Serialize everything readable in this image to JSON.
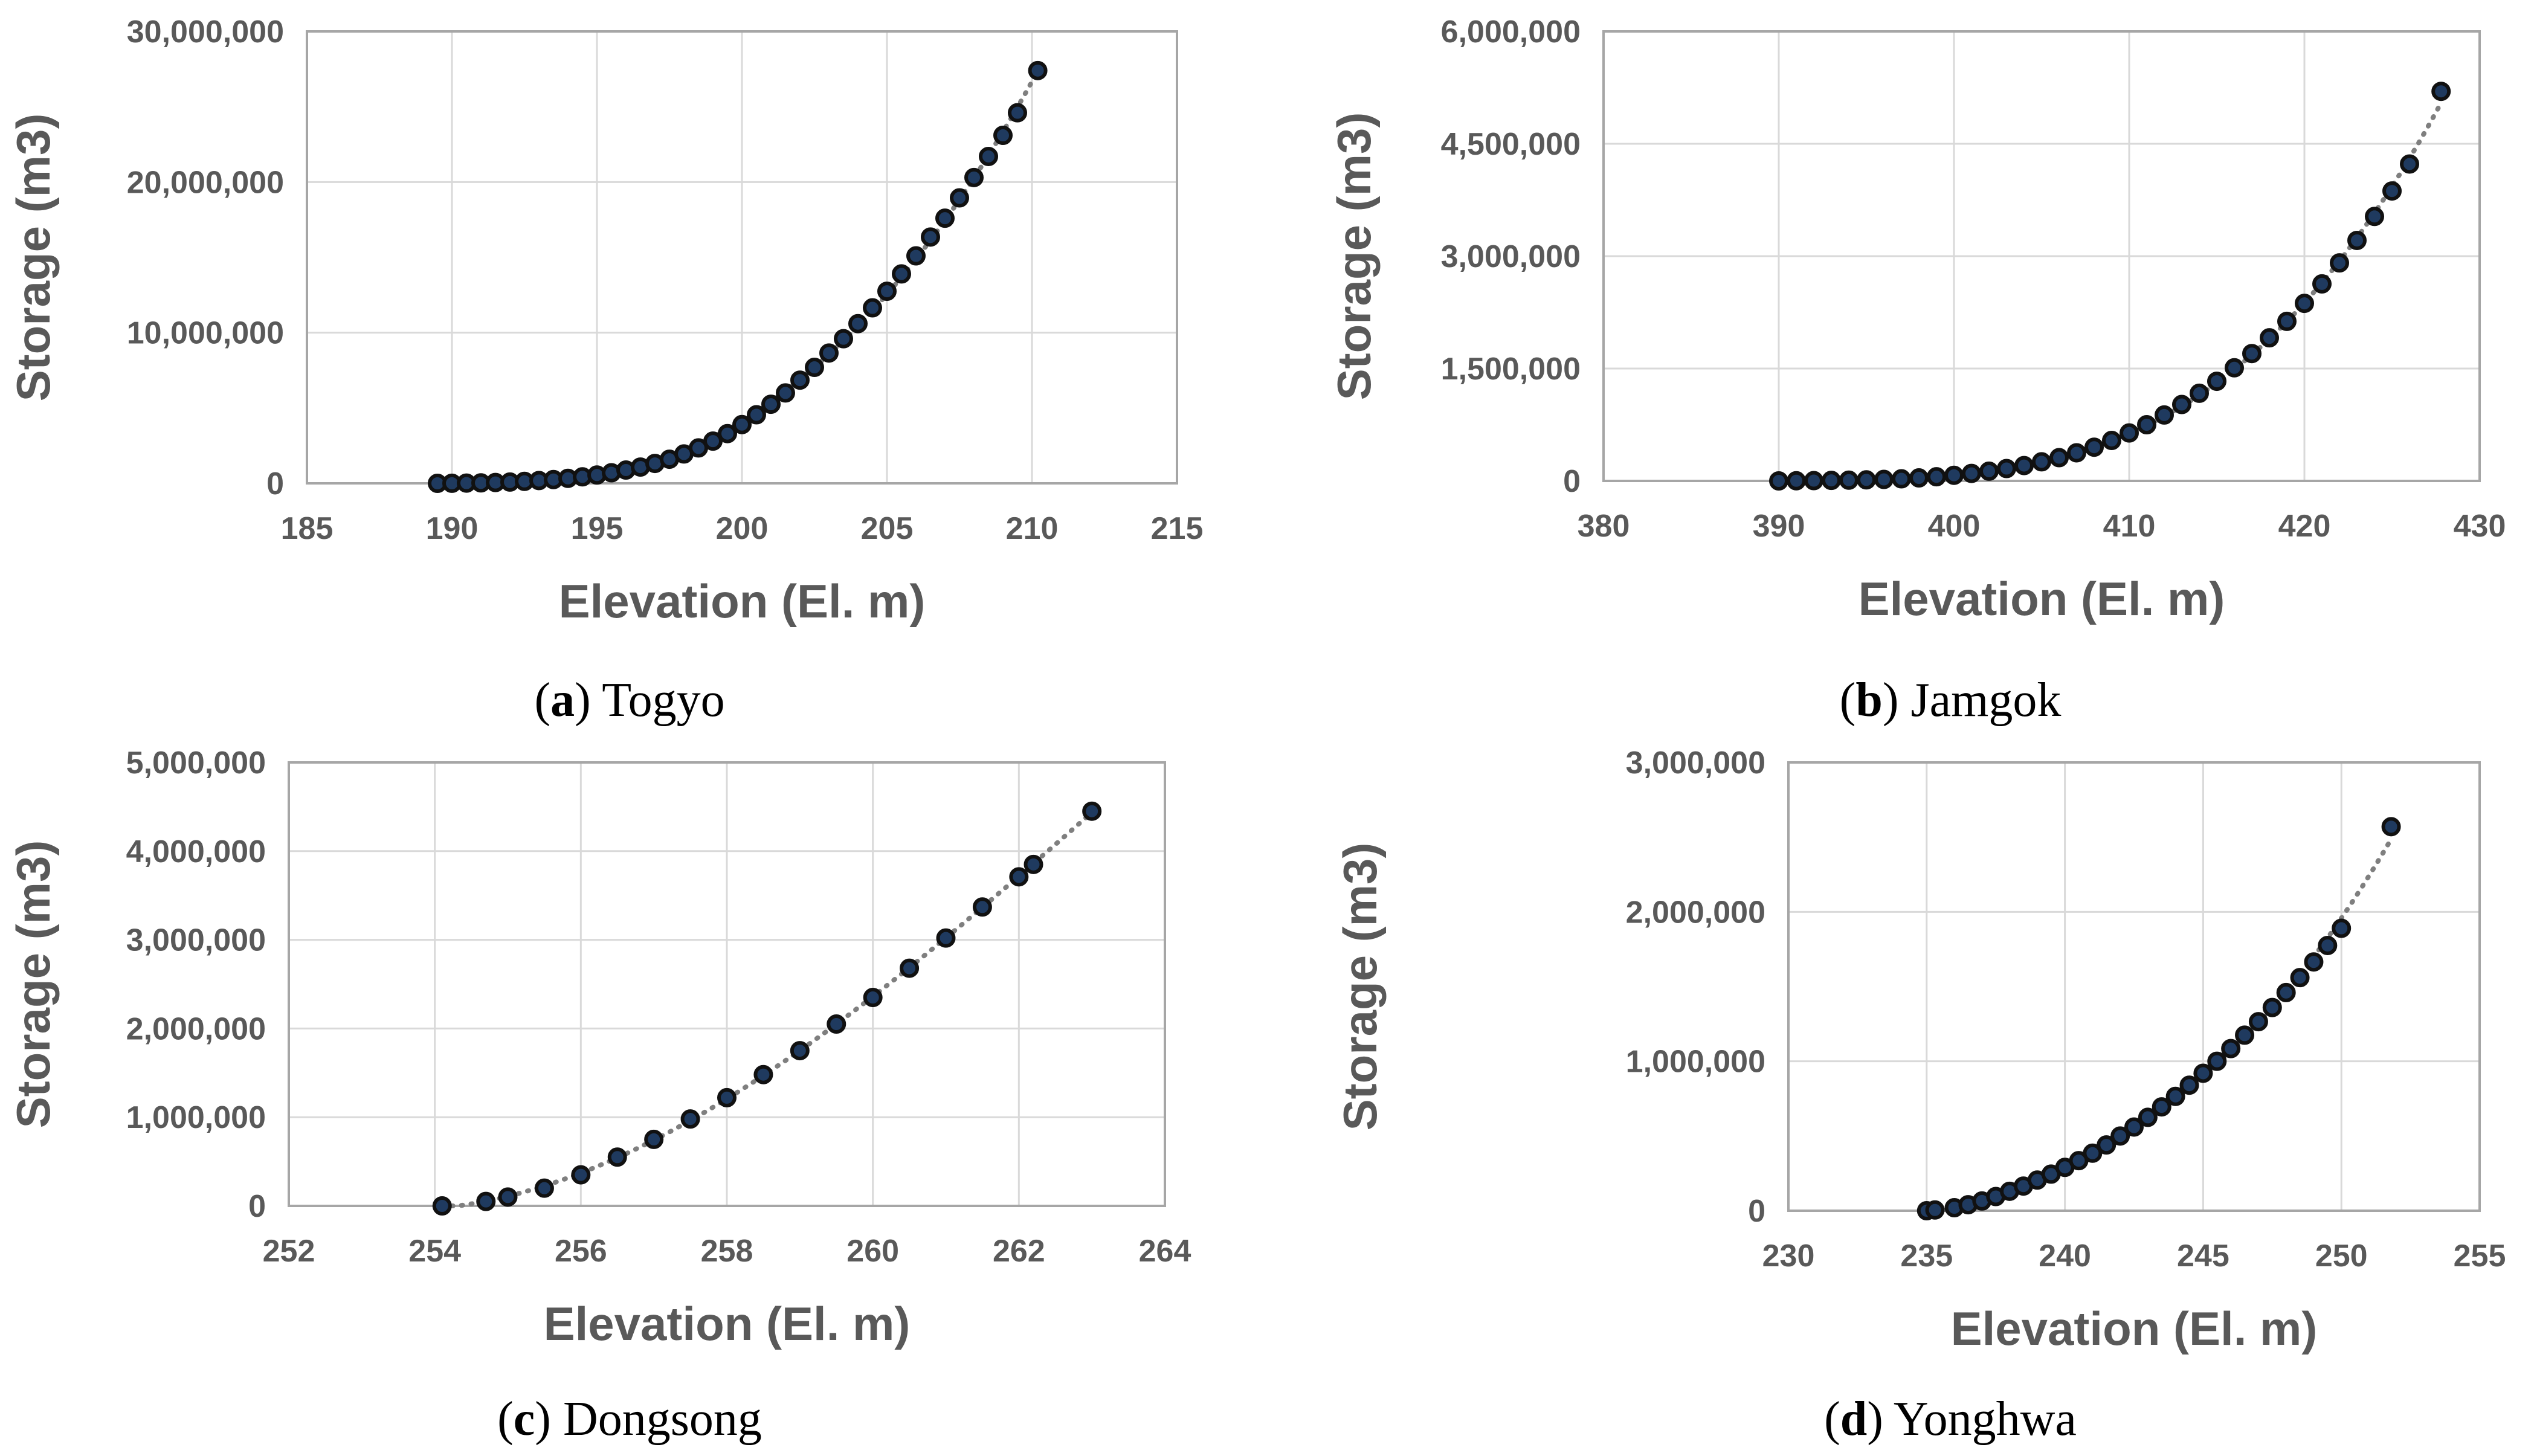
{
  "figure": {
    "panels": [
      {
        "id": "a",
        "caption_letter": "a",
        "caption_name": "Togyo"
      },
      {
        "id": "b",
        "caption_letter": "b",
        "caption_name": "Jamgok"
      },
      {
        "id": "c",
        "caption_letter": "c",
        "caption_name": "Dongsong"
      },
      {
        "id": "d",
        "caption_letter": "d",
        "caption_name": "Yonghwa"
      }
    ]
  },
  "colors": {
    "marker_fill": "#1f3a5f",
    "marker_edge": "#111111",
    "trendline": "#7f7f7f",
    "grid": "#d9d9d9",
    "axis_text": "#595959",
    "frame": "#a6a6a6"
  },
  "chart_data": [
    {
      "type": "scatter",
      "title": "",
      "xlabel": "Elevation (El. m)",
      "ylabel": "Storage (m3)",
      "xlim": [
        185,
        215
      ],
      "ylim": [
        0,
        30000000
      ],
      "x_ticks": [
        185,
        190,
        195,
        200,
        205,
        210,
        215
      ],
      "x_tick_labels": [
        "185",
        "190",
        "195",
        "200",
        "205",
        "210",
        "215"
      ],
      "y_ticks": [
        0,
        10000000,
        20000000,
        30000000
      ],
      "y_tick_labels": [
        "0",
        "10,000,000",
        "20,000,000",
        "30,000,000"
      ],
      "trendline": "dotted polynomial fit",
      "series": [
        {
          "name": "Togyo",
          "x": [
            189.5,
            190.0,
            190.5,
            191.0,
            191.5,
            192.0,
            192.5,
            193.0,
            193.5,
            194.0,
            194.5,
            195.0,
            195.5,
            196.0,
            196.5,
            197.0,
            197.5,
            198.0,
            198.5,
            199.0,
            199.5,
            200.0,
            200.5,
            201.0,
            201.5,
            202.0,
            202.5,
            203.0,
            203.5,
            204.0,
            204.5,
            205.0,
            205.5,
            206.0,
            206.5,
            207.0,
            207.5,
            208.0,
            208.5,
            209.0,
            209.5,
            210.2
          ],
          "y": [
            0,
            5000,
            15000,
            30000,
            55000,
            85000,
            130000,
            185000,
            250000,
            330000,
            430000,
            550000,
            700000,
            880000,
            1080000,
            1320000,
            1600000,
            1950000,
            2350000,
            2800000,
            3300000,
            3900000,
            4550000,
            5250000,
            6000000,
            6850000,
            7700000,
            8650000,
            9600000,
            10600000,
            11650000,
            12750000,
            13900000,
            15100000,
            16350000,
            17600000,
            18950000,
            20300000,
            21700000,
            23100000,
            24600000,
            27400000
          ]
        }
      ]
    },
    {
      "type": "scatter",
      "title": "",
      "xlabel": "Elevation (El. m)",
      "ylabel": "Storage (m3)",
      "xlim": [
        380,
        430
      ],
      "ylim": [
        0,
        6000000
      ],
      "x_ticks": [
        380,
        390,
        400,
        410,
        420,
        430
      ],
      "x_tick_labels": [
        "380",
        "390",
        "400",
        "410",
        "420",
        "430"
      ],
      "y_ticks": [
        0,
        1500000,
        3000000,
        4500000,
        6000000
      ],
      "y_tick_labels": [
        "0",
        "1,500,000",
        "3,000,000",
        "4,500,000",
        "6,000,000"
      ],
      "trendline": "dotted polynomial fit",
      "series": [
        {
          "name": "Jamgok",
          "x": [
            390,
            391,
            392,
            393,
            394,
            395,
            396,
            397,
            398,
            399,
            400,
            401,
            402,
            403,
            404,
            405,
            406,
            407,
            408,
            409,
            410,
            411,
            412,
            413,
            414,
            415,
            416,
            417,
            418,
            419,
            420,
            421,
            422,
            423,
            424,
            425,
            426,
            427.8
          ],
          "y": [
            0,
            2000,
            4000,
            7000,
            10000,
            14000,
            20000,
            28000,
            40000,
            55000,
            75000,
            100000,
            130000,
            165000,
            205000,
            255000,
            310000,
            375000,
            450000,
            540000,
            640000,
            750000,
            880000,
            1020000,
            1170000,
            1330000,
            1510000,
            1700000,
            1910000,
            2130000,
            2370000,
            2630000,
            2910000,
            3210000,
            3530000,
            3870000,
            4230000,
            5200000
          ]
        }
      ]
    },
    {
      "type": "scatter",
      "title": "",
      "xlabel": "Elevation (El. m)",
      "ylabel": "Storage (m3)",
      "xlim": [
        252,
        264
      ],
      "ylim": [
        0,
        5000000
      ],
      "x_ticks": [
        252,
        254,
        256,
        258,
        260,
        262,
        264
      ],
      "x_tick_labels": [
        "252",
        "254",
        "256",
        "258",
        "260",
        "262",
        "264"
      ],
      "y_ticks": [
        0,
        1000000,
        2000000,
        3000000,
        4000000,
        5000000
      ],
      "y_tick_labels": [
        "0",
        "1,000,000",
        "2,000,000",
        "3,000,000",
        "4,000,000",
        "5,000,000"
      ],
      "trendline": "dotted polynomial fit",
      "series": [
        {
          "name": "Dongsong",
          "x": [
            254.1,
            254.7,
            255.0,
            255.5,
            256.0,
            256.5,
            257.0,
            257.5,
            258.0,
            258.5,
            259.0,
            259.5,
            260.0,
            260.5,
            261.0,
            261.5,
            262.0,
            262.2,
            263.0
          ],
          "y": [
            0,
            50000,
            100000,
            200000,
            350000,
            550000,
            750000,
            980000,
            1220000,
            1480000,
            1750000,
            2050000,
            2350000,
            2680000,
            3020000,
            3370000,
            3710000,
            3850000,
            4450000
          ]
        }
      ]
    },
    {
      "type": "scatter",
      "title": "",
      "xlabel": "Elevation (El. m)",
      "ylabel": "Storage (m3)",
      "xlim": [
        230,
        255
      ],
      "ylim": [
        0,
        3000000
      ],
      "x_ticks": [
        230,
        235,
        240,
        245,
        250,
        255
      ],
      "x_tick_labels": [
        "230",
        "235",
        "240",
        "245",
        "250",
        "255"
      ],
      "y_ticks": [
        0,
        1000000,
        2000000,
        3000000
      ],
      "y_tick_labels": [
        "0",
        "1,000,000",
        "2,000,000",
        "3,000,000"
      ],
      "trendline": "dotted polynomial fit",
      "series": [
        {
          "name": "Yonghwa",
          "x": [
            235.0,
            235.3,
            236.0,
            236.5,
            237.0,
            237.5,
            238.0,
            238.5,
            239.0,
            239.5,
            240.0,
            240.5,
            241.0,
            241.5,
            242.0,
            242.5,
            243.0,
            243.5,
            244.0,
            244.5,
            245.0,
            245.5,
            246.0,
            246.5,
            247.0,
            247.5,
            248.0,
            248.5,
            249.0,
            249.5,
            250.0,
            251.8
          ],
          "y": [
            0,
            5000,
            20000,
            40000,
            65000,
            95000,
            130000,
            165000,
            205000,
            245000,
            290000,
            335000,
            385000,
            440000,
            500000,
            560000,
            625000,
            695000,
            765000,
            840000,
            920000,
            1000000,
            1085000,
            1175000,
            1265000,
            1360000,
            1460000,
            1560000,
            1665000,
            1775000,
            1890000,
            2570000
          ]
        }
      ]
    }
  ]
}
